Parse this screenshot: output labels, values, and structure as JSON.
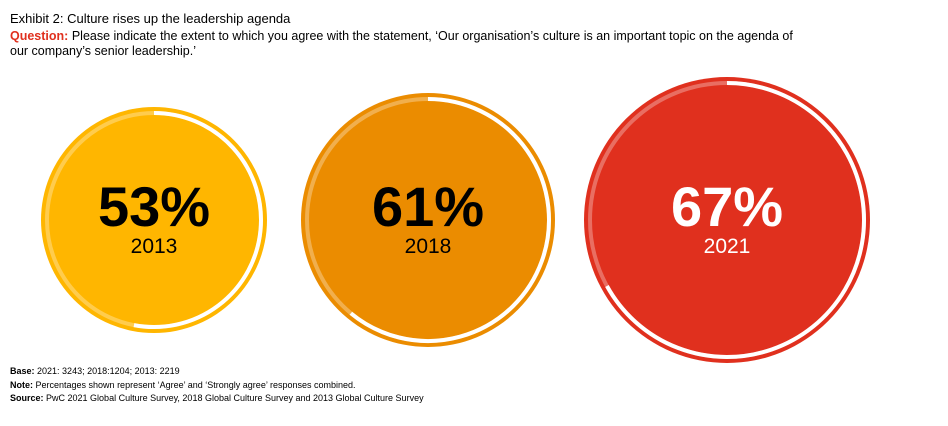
{
  "header": {
    "title": "Exhibit 2: Culture rises up the leadership agenda",
    "question_label": "Question:",
    "question_text": "Please indicate the extent to which you agree with the statement, ‘Our organisation’s culture is an important topic on the agenda of our company’s senior leadership.’"
  },
  "chart_data": {
    "type": "pie",
    "title": "Exhibit 2: Culture rises up the leadership agenda",
    "categories": [
      "2013",
      "2018",
      "2021"
    ],
    "values": [
      53,
      61,
      67
    ],
    "value_labels": [
      "53%",
      "61%",
      "67%"
    ],
    "unit": "%",
    "colors": [
      "#ffb600",
      "#eb8c00",
      "#e0301e"
    ],
    "value_text_colors": [
      "#000000",
      "#000000",
      "#ffffff"
    ]
  },
  "footer": {
    "base_label": "Base:",
    "base_text": "2021: 3243; 2018:1204; 2013: 2219",
    "note_label": "Note:",
    "note_text": "Percentages shown represent ‘Agree’ and ‘Strongly agree’ responses combined.",
    "source_label": "Source:",
    "source_text": "PwC 2021 Global Culture Survey, 2018 Global Culture Survey and 2013 Global Culture Survey"
  }
}
